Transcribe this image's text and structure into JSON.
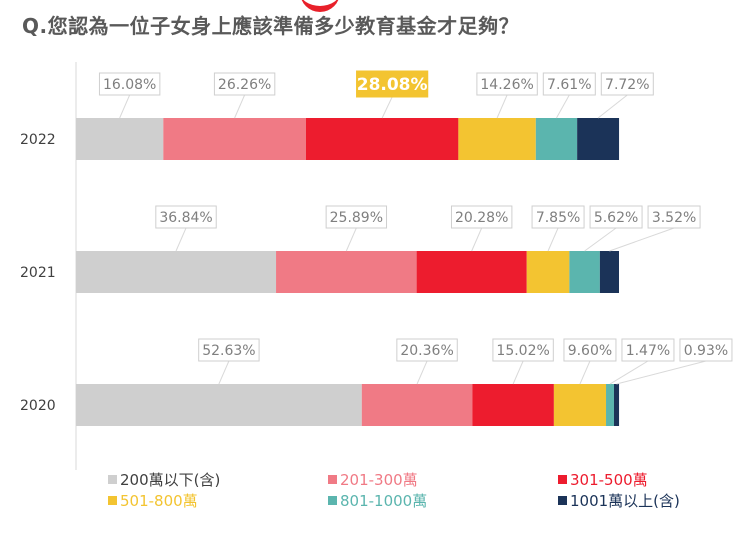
{
  "title": "Q.您認為一位子女身上應該準備多少教育基金才足夠？",
  "chart_data": {
    "type": "bar",
    "orientation": "horizontal",
    "stacked": true,
    "categories": [
      "2022",
      "2021",
      "2020"
    ],
    "series": [
      {
        "name": "200萬以下(含)",
        "color": "#cfcfcf",
        "values": [
          16.08,
          36.84,
          52.63
        ],
        "labels": [
          "16.08%",
          "36.84%",
          "52.63%"
        ]
      },
      {
        "name": "201-300萬",
        "color": "#f07a85",
        "values": [
          26.26,
          25.89,
          20.36
        ],
        "labels": [
          "26.26%",
          "25.89%",
          "20.36%"
        ]
      },
      {
        "name": "301-500萬",
        "color": "#ed1c2e",
        "values": [
          28.08,
          20.28,
          15.02
        ],
        "labels": [
          "28.08%",
          "20.28%",
          "15.02%"
        ]
      },
      {
        "name": "501-800萬",
        "color": "#f3c431",
        "values": [
          14.26,
          7.85,
          9.6
        ],
        "labels": [
          "14.26%",
          "7.85%",
          "9.60%"
        ]
      },
      {
        "name": "801-1000萬",
        "color": "#5bb5ae",
        "values": [
          7.61,
          5.62,
          1.47
        ],
        "labels": [
          "7.61%",
          "5.62%",
          "1.47%"
        ]
      },
      {
        "name": "1001萬以上(含)",
        "color": "#1b3358",
        "values": [
          7.72,
          3.52,
          0.93
        ],
        "labels": [
          "7.72%",
          "3.52%",
          "0.93%"
        ]
      }
    ],
    "highlight": {
      "category": "2022",
      "series": "301-500萬",
      "color": "#f3c431"
    },
    "legend_colors": [
      "#404040",
      "#f07a85",
      "#ed1c2e",
      "#f3c431",
      "#5bb5ae",
      "#1b3358"
    ],
    "legend_position": "bottom",
    "xlim": [
      0,
      100
    ],
    "grid": false
  }
}
